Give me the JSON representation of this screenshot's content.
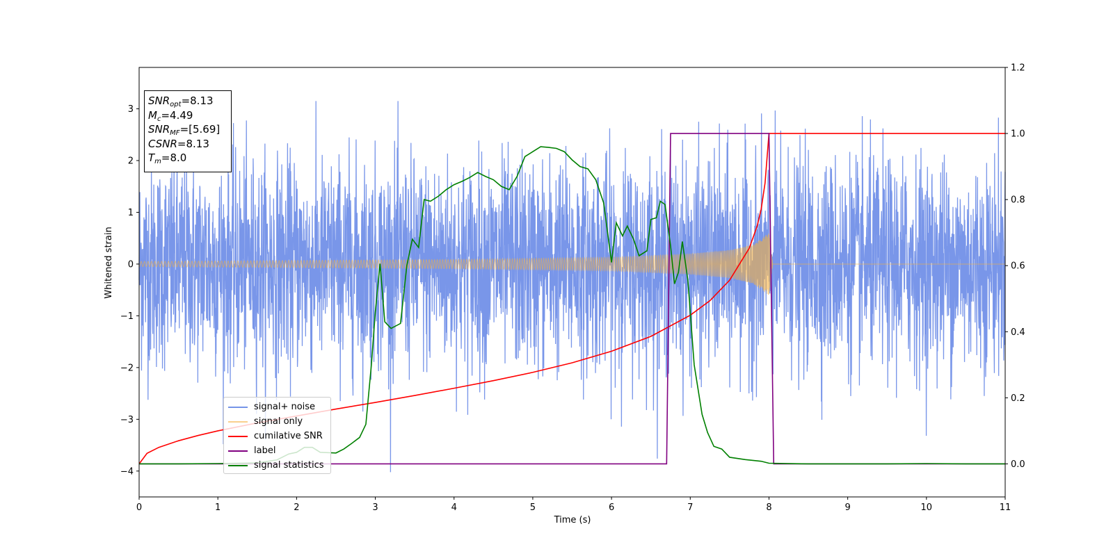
{
  "chart_data": {
    "type": "line",
    "xlabel": "Time (s)",
    "ylabel": "Whitened strain",
    "xlim": [
      0,
      11
    ],
    "ylim_left": [
      -4.5,
      3.8
    ],
    "ylim_right": [
      -0.1,
      1.2
    ],
    "x_ticks": [
      "0",
      "1",
      "2",
      "3",
      "4",
      "5",
      "6",
      "7",
      "8",
      "9",
      "10",
      "11"
    ],
    "y_ticks_left": [
      "−4",
      "−3",
      "−2",
      "−1",
      "0",
      "1",
      "2",
      "3"
    ],
    "y_ticks_right": [
      "0.0",
      "0.2",
      "0.4",
      "0.6",
      "0.8",
      "1.0",
      "1.2"
    ],
    "legend_position": "lower-left",
    "annotation": {
      "lines": [
        {
          "var": "SNR",
          "sub": "opt",
          "value": "=8.13"
        },
        {
          "var": "M",
          "sub": "c",
          "value": "=4.49"
        },
        {
          "var": "SNR",
          "sub": "MF",
          "value": "=[5.69]"
        },
        {
          "var": "CSNR",
          "sub": "",
          "value": "=8.13"
        },
        {
          "var": "T",
          "sub": "m",
          "value": "=8.0"
        }
      ]
    },
    "series": [
      {
        "name": "signal+ noise",
        "axis": "left",
        "color": "#6688e6",
        "style": "noise",
        "x_range": [
          0,
          11
        ],
        "approx_std": 1.0,
        "approx_peak_range": [
          -4.15,
          3.15
        ]
      },
      {
        "name": "signal only",
        "axis": "left",
        "color": "#f5b041",
        "style": "chirp",
        "x_range": [
          0,
          8.05
        ],
        "envelope": [
          [
            0,
            0.05
          ],
          [
            2,
            0.07
          ],
          [
            4,
            0.09
          ],
          [
            6,
            0.13
          ],
          [
            7,
            0.2
          ],
          [
            7.5,
            0.27
          ],
          [
            7.8,
            0.38
          ],
          [
            7.95,
            0.55
          ],
          [
            8.0,
            0.6
          ],
          [
            8.05,
            0.0
          ]
        ],
        "after_merger_value": 0
      },
      {
        "name": "cumilative SNR",
        "axis": "right",
        "color": "#ff0000",
        "points": [
          [
            0,
            0.0
          ],
          [
            0.1,
            0.032
          ],
          [
            0.25,
            0.05
          ],
          [
            0.5,
            0.07
          ],
          [
            0.75,
            0.086
          ],
          [
            1,
            0.1
          ],
          [
            1.5,
            0.124
          ],
          [
            2,
            0.145
          ],
          [
            2.5,
            0.166
          ],
          [
            3,
            0.186
          ],
          [
            3.5,
            0.207
          ],
          [
            4,
            0.229
          ],
          [
            4.5,
            0.252
          ],
          [
            5,
            0.277
          ],
          [
            5.5,
            0.306
          ],
          [
            6,
            0.341
          ],
          [
            6.5,
            0.386
          ],
          [
            7,
            0.45
          ],
          [
            7.25,
            0.494
          ],
          [
            7.5,
            0.556
          ],
          [
            7.75,
            0.653
          ],
          [
            7.85,
            0.72
          ],
          [
            7.9,
            0.77
          ],
          [
            7.95,
            0.85
          ],
          [
            8.0,
            1.0
          ],
          [
            11,
            1.0
          ]
        ]
      },
      {
        "name": "label",
        "axis": "right",
        "color": "#800080",
        "points": [
          [
            0,
            0.0
          ],
          [
            6.7,
            0.0
          ],
          [
            6.75,
            1.0
          ],
          [
            8.0,
            1.0
          ],
          [
            8.06,
            0.0
          ],
          [
            11,
            0.0
          ]
        ]
      },
      {
        "name": "signal statistics",
        "axis": "right",
        "color": "#008000",
        "points": [
          [
            0,
            0.0
          ],
          [
            0.5,
            0.0
          ],
          [
            1.0,
            0.001
          ],
          [
            1.5,
            0.003
          ],
          [
            1.75,
            0.012
          ],
          [
            1.9,
            0.03
          ],
          [
            2.0,
            0.035
          ],
          [
            2.1,
            0.05
          ],
          [
            2.2,
            0.05
          ],
          [
            2.3,
            0.035
          ],
          [
            2.5,
            0.033
          ],
          [
            2.6,
            0.045
          ],
          [
            2.7,
            0.062
          ],
          [
            2.8,
            0.08
          ],
          [
            2.88,
            0.12
          ],
          [
            2.95,
            0.3
          ],
          [
            3.0,
            0.46
          ],
          [
            3.06,
            0.606
          ],
          [
            3.12,
            0.43
          ],
          [
            3.2,
            0.41
          ],
          [
            3.32,
            0.425
          ],
          [
            3.4,
            0.6
          ],
          [
            3.47,
            0.68
          ],
          [
            3.55,
            0.655
          ],
          [
            3.62,
            0.8
          ],
          [
            3.7,
            0.795
          ],
          [
            3.8,
            0.81
          ],
          [
            3.9,
            0.83
          ],
          [
            4.0,
            0.845
          ],
          [
            4.1,
            0.855
          ],
          [
            4.2,
            0.867
          ],
          [
            4.3,
            0.882
          ],
          [
            4.4,
            0.87
          ],
          [
            4.5,
            0.86
          ],
          [
            4.6,
            0.84
          ],
          [
            4.7,
            0.83
          ],
          [
            4.8,
            0.87
          ],
          [
            4.9,
            0.93
          ],
          [
            5.0,
            0.945
          ],
          [
            5.1,
            0.96
          ],
          [
            5.2,
            0.958
          ],
          [
            5.3,
            0.955
          ],
          [
            5.4,
            0.945
          ],
          [
            5.5,
            0.92
          ],
          [
            5.6,
            0.9
          ],
          [
            5.7,
            0.893
          ],
          [
            5.8,
            0.86
          ],
          [
            5.9,
            0.79
          ],
          [
            6.0,
            0.61
          ],
          [
            6.06,
            0.73
          ],
          [
            6.14,
            0.69
          ],
          [
            6.2,
            0.72
          ],
          [
            6.28,
            0.68
          ],
          [
            6.35,
            0.63
          ],
          [
            6.45,
            0.645
          ],
          [
            6.5,
            0.74
          ],
          [
            6.57,
            0.745
          ],
          [
            6.62,
            0.795
          ],
          [
            6.68,
            0.785
          ],
          [
            6.75,
            0.66
          ],
          [
            6.8,
            0.545
          ],
          [
            6.85,
            0.58
          ],
          [
            6.9,
            0.673
          ],
          [
            6.97,
            0.555
          ],
          [
            7.05,
            0.3
          ],
          [
            7.15,
            0.15
          ],
          [
            7.22,
            0.095
          ],
          [
            7.3,
            0.053
          ],
          [
            7.4,
            0.045
          ],
          [
            7.5,
            0.02
          ],
          [
            7.7,
            0.013
          ],
          [
            7.9,
            0.008
          ],
          [
            8.0,
            0.002
          ],
          [
            8.5,
            0.0
          ],
          [
            9.5,
            0.0
          ],
          [
            10.0,
            0.001
          ],
          [
            10.5,
            0.0
          ],
          [
            11,
            0.0
          ]
        ]
      }
    ]
  }
}
